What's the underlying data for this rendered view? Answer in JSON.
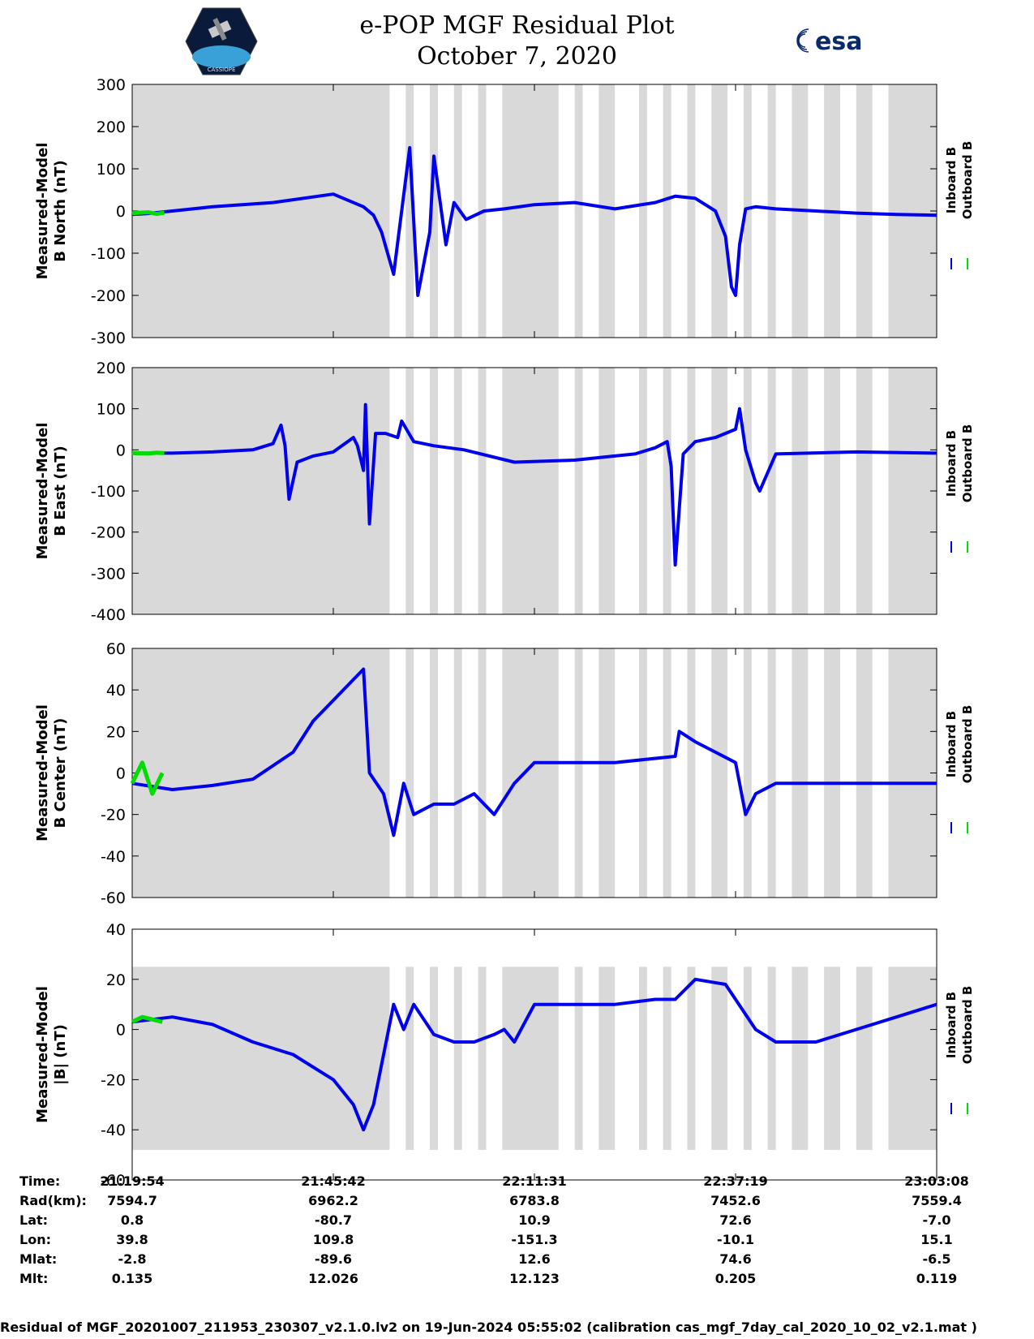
{
  "header": {
    "title_line1": "e-POP MGF Residual Plot",
    "title_line2": "October 7, 2020",
    "left_logo_caption": "CASSIOPE",
    "right_logo_text": "esa"
  },
  "colors": {
    "inboard": "#0000ee",
    "outboard": "#00dd00",
    "shade": "#d9d9d9"
  },
  "chart_data": [
    {
      "type": "line",
      "name": "north",
      "ylabel_line1": "Measured-Model",
      "ylabel_line2": "B North (nT)",
      "ylim": [
        -300,
        300
      ],
      "yticks": [
        300,
        200,
        100,
        0,
        -100,
        -200,
        -300
      ],
      "ytick_labels": [
        "300",
        "200",
        "100",
        "0",
        "-100",
        "-200",
        "-300"
      ],
      "legend": [
        "Inboard B",
        "Outboard B"
      ],
      "series": [
        {
          "name": "Inboard B",
          "x": [
            0,
            8,
            20,
            40,
            70,
            100,
            115,
            120,
            124,
            130,
            138,
            142,
            148,
            150,
            156,
            160,
            166,
            175,
            185,
            200,
            220,
            240,
            260,
            270,
            280,
            290,
            295,
            298,
            300,
            302,
            305,
            310,
            320,
            340,
            360,
            380,
            400
          ],
          "values": [
            -8,
            -6,
            0,
            10,
            20,
            40,
            10,
            -10,
            -50,
            -150,
            150,
            -200,
            -50,
            130,
            -80,
            20,
            -20,
            0,
            5,
            15,
            20,
            5,
            20,
            35,
            30,
            0,
            -60,
            -180,
            -200,
            -80,
            5,
            10,
            5,
            0,
            -5,
            -8,
            -10
          ]
        },
        {
          "name": "Outboard B",
          "x": [
            0,
            8,
            12,
            16
          ],
          "values": [
            -5,
            -3,
            -7,
            -4
          ]
        }
      ]
    },
    {
      "type": "line",
      "name": "east",
      "ylabel_line1": "Measured-Model",
      "ylabel_line2": "B East (nT)",
      "ylim": [
        -400,
        200
      ],
      "yticks": [
        200,
        100,
        0,
        -100,
        -200,
        -300,
        -400
      ],
      "ytick_labels": [
        "200",
        "100",
        "0",
        "-100",
        "-200",
        "-300",
        "-400"
      ],
      "legend": [
        "Inboard B",
        "Outboard B"
      ],
      "series": [
        {
          "name": "Inboard B",
          "x": [
            0,
            20,
            40,
            60,
            70,
            74,
            76,
            78,
            82,
            90,
            100,
            110,
            112,
            115,
            116,
            118,
            121,
            126,
            132,
            134,
            140,
            150,
            165,
            190,
            220,
            240,
            250,
            260,
            266,
            268,
            270,
            274,
            280,
            290,
            300,
            302,
            305,
            310,
            312,
            320,
            360,
            400
          ],
          "values": [
            -8,
            -8,
            -5,
            0,
            15,
            60,
            10,
            -120,
            -30,
            -15,
            -5,
            30,
            10,
            -50,
            110,
            -180,
            40,
            40,
            30,
            70,
            20,
            10,
            0,
            -30,
            -25,
            -15,
            -10,
            5,
            20,
            -40,
            -280,
            -10,
            20,
            30,
            50,
            100,
            0,
            -80,
            -100,
            -10,
            -5,
            -8
          ]
        },
        {
          "name": "Outboard B",
          "x": [
            0,
            8,
            12,
            16
          ],
          "values": [
            -8,
            -9,
            -7,
            -8
          ]
        }
      ]
    },
    {
      "type": "line",
      "name": "center",
      "ylabel_line1": "Measured-Model",
      "ylabel_line2": "B Center (nT)",
      "ylim": [
        -60,
        60
      ],
      "yticks": [
        60,
        40,
        20,
        0,
        -20,
        -40,
        -60
      ],
      "ytick_labels": [
        "60",
        "40",
        "20",
        "0",
        "-20",
        "-40",
        "-60"
      ],
      "legend": [
        "Inboard B",
        "Outboard B"
      ],
      "series": [
        {
          "name": "Inboard B",
          "x": [
            0,
            20,
            40,
            60,
            80,
            90,
            100,
            110,
            115,
            118,
            125,
            130,
            135,
            140,
            150,
            160,
            170,
            180,
            190,
            200,
            220,
            240,
            270,
            272,
            280,
            290,
            300,
            305,
            310,
            320,
            340,
            360,
            380,
            400
          ],
          "values": [
            -5,
            -8,
            -6,
            -3,
            10,
            25,
            35,
            45,
            50,
            0,
            -10,
            -30,
            -5,
            -20,
            -15,
            -15,
            -10,
            -20,
            -5,
            5,
            5,
            5,
            8,
            20,
            15,
            10,
            5,
            -20,
            -10,
            -5,
            -5,
            -5,
            -5,
            -5
          ]
        },
        {
          "name": "Outboard B",
          "x": [
            0,
            5,
            10,
            15
          ],
          "values": [
            -5,
            5,
            -10,
            0
          ]
        }
      ]
    },
    {
      "type": "line",
      "name": "total",
      "ylabel_line1": "Measured-Model",
      "ylabel_line2": "|B| (nT)",
      "ylim": [
        -60,
        40
      ],
      "yticks": [
        40,
        20,
        0,
        -20,
        -40,
        -60
      ],
      "ytick_labels": [
        "40",
        "20",
        "0",
        "-20",
        "-40",
        "-60"
      ],
      "legend": [
        "Inboard B",
        "Outboard B"
      ],
      "series": [
        {
          "name": "Inboard B",
          "x": [
            0,
            20,
            40,
            60,
            80,
            100,
            110,
            115,
            120,
            125,
            130,
            135,
            140,
            150,
            160,
            170,
            180,
            185,
            190,
            200,
            220,
            240,
            260,
            270,
            280,
            295,
            300,
            310,
            320,
            340,
            360,
            380,
            400
          ],
          "values": [
            3,
            5,
            2,
            -5,
            -10,
            -20,
            -30,
            -40,
            -30,
            -10,
            10,
            0,
            10,
            -2,
            -5,
            -5,
            -2,
            0,
            -5,
            10,
            10,
            10,
            12,
            12,
            20,
            18,
            12,
            0,
            -5,
            -5,
            0,
            5,
            10
          ]
        },
        {
          "name": "Outboard B",
          "x": [
            0,
            5,
            10,
            15
          ],
          "values": [
            3,
            5,
            4,
            3
          ]
        }
      ]
    }
  ],
  "ephemeris": {
    "labels": [
      "Time:",
      "Rad(km):",
      "Lat:",
      "Lon:",
      "Mlat:",
      "Mlt:"
    ],
    "columns": [
      [
        "21:19:54",
        "7594.7",
        "0.8",
        "39.8",
        "-2.8",
        "0.135"
      ],
      [
        "21:45:42",
        "6962.2",
        "-80.7",
        "109.8",
        "-89.6",
        "12.026"
      ],
      [
        "22:11:31",
        "6783.8",
        "10.9",
        "-151.3",
        "12.6",
        "12.123"
      ],
      [
        "22:37:19",
        "7452.6",
        "72.6",
        "-10.1",
        "74.6",
        "0.205"
      ],
      [
        "23:03:08",
        "7559.4",
        "-7.0",
        "15.1",
        "-6.5",
        "0.119"
      ]
    ]
  },
  "footer": "Residual of MGF_20201007_211953_230307_v2.1.0.lv2 on 19-Jun-2024 05:55:02 (calibration cas_mgf_7day_cal_2020_10_02_v2.1.mat )"
}
